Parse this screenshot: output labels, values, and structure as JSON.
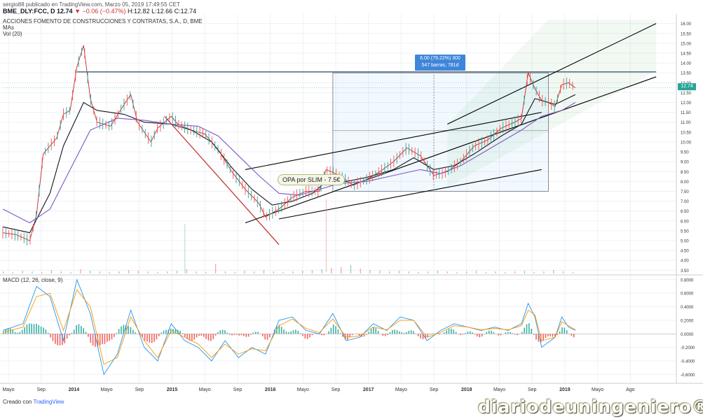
{
  "header": {
    "published": "sergio88 publicado en TradingView.com, Marzo 05, 2019 17:49:55 CET",
    "symbol": "BME_DLY:FCC, D",
    "last": "12.74",
    "change": "▼ −0.06 (−0.47%)",
    "ohlc": "H:12.82 L:12.66 C:12.74",
    "company": "ACCIONES FOMENTO DE CONSTRUCCIONES Y CONTRATAS, S.A., D, BME",
    "mas": "MAs",
    "vol": "Vol (20)",
    "macd": "MACD (12, 26, close, 9)"
  },
  "annotations": {
    "measure_line1": "6.00 (79.22%) 300",
    "measure_line2": "547 barras, 781d",
    "opa": "OPA por SLIM - 7.5€",
    "price_tag": "12.74"
  },
  "footer": {
    "prefix": "Creado con",
    "brand": "TradingView"
  },
  "watermark": "diariodeuningeniero®",
  "colors": {
    "up": "#26a69a",
    "down": "#ef5350",
    "ma_fast": "#131722",
    "ma_slow": "#7e57c2",
    "macd": "#2196f3",
    "signal": "#ff9800",
    "trend": "#000000",
    "downtrend": "#c62828"
  },
  "chart_data": [
    {
      "type": "line",
      "title": "ACCIONES FOMENTO DE CONSTRUCCIONES Y CONTRATAS, S.A., D, BME",
      "x_ticks": [
        "Mayo",
        "Sep",
        "2014",
        "Mayo",
        "Sep",
        "2015",
        "Mayo",
        "Sep",
        "2016",
        "Mayo",
        "Sep",
        "2017",
        "Mayo",
        "Sep",
        "2018",
        "Mayo",
        "Sep",
        "2019",
        "Mayo",
        "Ago"
      ],
      "y_ticks": [
        3.5,
        4.0,
        4.5,
        5.0,
        5.5,
        6.0,
        6.5,
        7.0,
        7.5,
        8.0,
        8.5,
        9.0,
        9.5,
        10.0,
        10.5,
        11.0,
        11.5,
        12.0,
        12.5,
        13.0,
        13.5,
        14.0,
        14.5,
        15.0,
        15.5,
        16.0
      ],
      "ylim": [
        3.3,
        16.2
      ],
      "xlim": [
        0,
        1
      ],
      "series": [
        {
          "name": "",
          "values": [
            [
              0.0,
              5.4
            ],
            [
              0.02,
              5.3
            ],
            [
              0.04,
              5.0
            ],
            [
              0.05,
              6.3
            ],
            [
              0.06,
              9.4
            ],
            [
              0.08,
              10.2
            ],
            [
              0.09,
              11.4
            ],
            [
              0.1,
              11.6
            ],
            [
              0.11,
              13.8
            ],
            [
              0.12,
              14.9
            ],
            [
              0.13,
              12.2
            ],
            [
              0.14,
              11.0
            ],
            [
              0.16,
              10.8
            ],
            [
              0.18,
              11.9
            ],
            [
              0.19,
              12.4
            ],
            [
              0.2,
              11.0
            ],
            [
              0.22,
              10.0
            ],
            [
              0.23,
              10.7
            ],
            [
              0.25,
              11.3
            ],
            [
              0.26,
              10.9
            ],
            [
              0.28,
              10.6
            ],
            [
              0.3,
              10.4
            ],
            [
              0.32,
              9.6
            ],
            [
              0.34,
              8.5
            ],
            [
              0.36,
              7.6
            ],
            [
              0.38,
              6.9
            ],
            [
              0.39,
              6.2
            ],
            [
              0.41,
              6.6
            ],
            [
              0.43,
              7.2
            ],
            [
              0.45,
              7.5
            ],
            [
              0.47,
              7.5
            ],
            [
              0.48,
              8.6
            ],
            [
              0.5,
              8.3
            ],
            [
              0.52,
              7.8
            ],
            [
              0.54,
              8.1
            ],
            [
              0.56,
              8.5
            ],
            [
              0.58,
              9.0
            ],
            [
              0.6,
              9.7
            ],
            [
              0.62,
              9.3
            ],
            [
              0.64,
              8.3
            ],
            [
              0.66,
              8.5
            ],
            [
              0.68,
              9.0
            ],
            [
              0.7,
              9.8
            ],
            [
              0.72,
              10.1
            ],
            [
              0.74,
              10.7
            ],
            [
              0.76,
              11.0
            ],
            [
              0.77,
              11.2
            ],
            [
              0.78,
              13.5
            ],
            [
              0.79,
              12.7
            ],
            [
              0.8,
              12.1
            ],
            [
              0.81,
              12.0
            ],
            [
              0.82,
              11.8
            ],
            [
              0.83,
              12.9
            ],
            [
              0.84,
              13.0
            ],
            [
              0.85,
              12.74
            ]
          ]
        },
        {
          "name": "",
          "values": [
            [
              0.0,
              5.7
            ],
            [
              0.04,
              5.4
            ],
            [
              0.07,
              7.4
            ],
            [
              0.09,
              9.8
            ],
            [
              0.12,
              12.0
            ],
            [
              0.14,
              11.6
            ],
            [
              0.18,
              11.4
            ],
            [
              0.21,
              11.0
            ],
            [
              0.25,
              10.9
            ],
            [
              0.28,
              10.6
            ],
            [
              0.31,
              10.0
            ],
            [
              0.34,
              8.7
            ],
            [
              0.37,
              7.6
            ],
            [
              0.4,
              6.8
            ],
            [
              0.43,
              7.0
            ],
            [
              0.46,
              7.4
            ],
            [
              0.48,
              8.0
            ],
            [
              0.51,
              8.0
            ],
            [
              0.54,
              8.2
            ],
            [
              0.58,
              8.6
            ],
            [
              0.61,
              9.2
            ],
            [
              0.64,
              8.6
            ],
            [
              0.67,
              8.8
            ],
            [
              0.7,
              9.4
            ],
            [
              0.74,
              10.3
            ],
            [
              0.77,
              10.9
            ],
            [
              0.79,
              12.2
            ],
            [
              0.82,
              11.9
            ],
            [
              0.85,
              12.4
            ]
          ]
        },
        {
          "name": "",
          "values": [
            [
              0.0,
              6.6
            ],
            [
              0.04,
              5.9
            ],
            [
              0.07,
              6.6
            ],
            [
              0.1,
              8.6
            ],
            [
              0.13,
              10.6
            ],
            [
              0.17,
              11.2
            ],
            [
              0.21,
              11.1
            ],
            [
              0.25,
              10.9
            ],
            [
              0.29,
              10.8
            ],
            [
              0.32,
              10.3
            ],
            [
              0.35,
              9.3
            ],
            [
              0.38,
              8.3
            ],
            [
              0.41,
              7.4
            ],
            [
              0.44,
              7.3
            ],
            [
              0.47,
              7.6
            ],
            [
              0.5,
              7.9
            ],
            [
              0.54,
              8.0
            ],
            [
              0.58,
              8.3
            ],
            [
              0.62,
              8.6
            ],
            [
              0.65,
              8.4
            ],
            [
              0.68,
              8.8
            ],
            [
              0.71,
              9.4
            ],
            [
              0.74,
              10.0
            ],
            [
              0.77,
              10.6
            ],
            [
              0.8,
              11.3
            ],
            [
              0.83,
              11.6
            ],
            [
              0.85,
              12.0
            ]
          ]
        }
      ]
    },
    {
      "type": "line",
      "title": "MACD (12, 26, close, 9)",
      "y_ticks": [
        -0.6,
        -0.4,
        -0.2,
        0.0,
        0.2,
        0.4,
        0.6,
        0.8
      ],
      "ylim": [
        -0.72,
        0.86
      ],
      "series": [
        {
          "name": "",
          "values": [
            [
              0.0,
              0.05
            ],
            [
              0.03,
              0.15
            ],
            [
              0.05,
              0.7
            ],
            [
              0.07,
              0.55
            ],
            [
              0.09,
              -0.1
            ],
            [
              0.11,
              0.8
            ],
            [
              0.13,
              0.3
            ],
            [
              0.15,
              -0.6
            ],
            [
              0.17,
              -0.3
            ],
            [
              0.19,
              0.35
            ],
            [
              0.21,
              -0.2
            ],
            [
              0.23,
              -0.4
            ],
            [
              0.25,
              0.15
            ],
            [
              0.27,
              -0.1
            ],
            [
              0.29,
              -0.2
            ],
            [
              0.31,
              -0.4
            ],
            [
              0.33,
              -0.1
            ],
            [
              0.35,
              -0.35
            ],
            [
              0.37,
              -0.2
            ],
            [
              0.39,
              -0.3
            ],
            [
              0.41,
              0.2
            ],
            [
              0.43,
              0.25
            ],
            [
              0.45,
              0.05
            ],
            [
              0.47,
              0.0
            ],
            [
              0.49,
              0.3
            ],
            [
              0.51,
              -0.1
            ],
            [
              0.53,
              -0.05
            ],
            [
              0.55,
              0.15
            ],
            [
              0.57,
              0.05
            ],
            [
              0.59,
              0.25
            ],
            [
              0.61,
              0.2
            ],
            [
              0.63,
              -0.1
            ],
            [
              0.65,
              0.05
            ],
            [
              0.67,
              0.15
            ],
            [
              0.69,
              0.1
            ],
            [
              0.71,
              0.05
            ],
            [
              0.73,
              0.1
            ],
            [
              0.75,
              0.05
            ],
            [
              0.77,
              0.15
            ],
            [
              0.78,
              0.45
            ],
            [
              0.79,
              0.25
            ],
            [
              0.8,
              -0.2
            ],
            [
              0.82,
              -0.05
            ],
            [
              0.83,
              0.25
            ],
            [
              0.84,
              0.1
            ],
            [
              0.85,
              0.05
            ]
          ]
        },
        {
          "name": "",
          "values": [
            [
              0.0,
              0.02
            ],
            [
              0.03,
              0.1
            ],
            [
              0.05,
              0.55
            ],
            [
              0.07,
              0.6
            ],
            [
              0.09,
              0.05
            ],
            [
              0.11,
              0.65
            ],
            [
              0.13,
              0.4
            ],
            [
              0.15,
              -0.45
            ],
            [
              0.17,
              -0.35
            ],
            [
              0.19,
              0.25
            ],
            [
              0.21,
              -0.1
            ],
            [
              0.23,
              -0.35
            ],
            [
              0.25,
              0.05
            ],
            [
              0.27,
              -0.05
            ],
            [
              0.29,
              -0.15
            ],
            [
              0.31,
              -0.35
            ],
            [
              0.33,
              -0.15
            ],
            [
              0.35,
              -0.3
            ],
            [
              0.37,
              -0.22
            ],
            [
              0.39,
              -0.25
            ],
            [
              0.41,
              0.12
            ],
            [
              0.43,
              0.22
            ],
            [
              0.45,
              0.08
            ],
            [
              0.47,
              0.02
            ],
            [
              0.49,
              0.22
            ],
            [
              0.51,
              -0.05
            ],
            [
              0.53,
              -0.03
            ],
            [
              0.55,
              0.1
            ],
            [
              0.57,
              0.06
            ],
            [
              0.59,
              0.2
            ],
            [
              0.61,
              0.2
            ],
            [
              0.63,
              -0.05
            ],
            [
              0.65,
              0.02
            ],
            [
              0.67,
              0.12
            ],
            [
              0.69,
              0.1
            ],
            [
              0.71,
              0.06
            ],
            [
              0.73,
              0.08
            ],
            [
              0.75,
              0.06
            ],
            [
              0.77,
              0.12
            ],
            [
              0.78,
              0.35
            ],
            [
              0.79,
              0.28
            ],
            [
              0.8,
              -0.1
            ],
            [
              0.82,
              -0.05
            ],
            [
              0.83,
              0.18
            ],
            [
              0.84,
              0.12
            ],
            [
              0.85,
              0.06
            ]
          ]
        }
      ]
    }
  ]
}
